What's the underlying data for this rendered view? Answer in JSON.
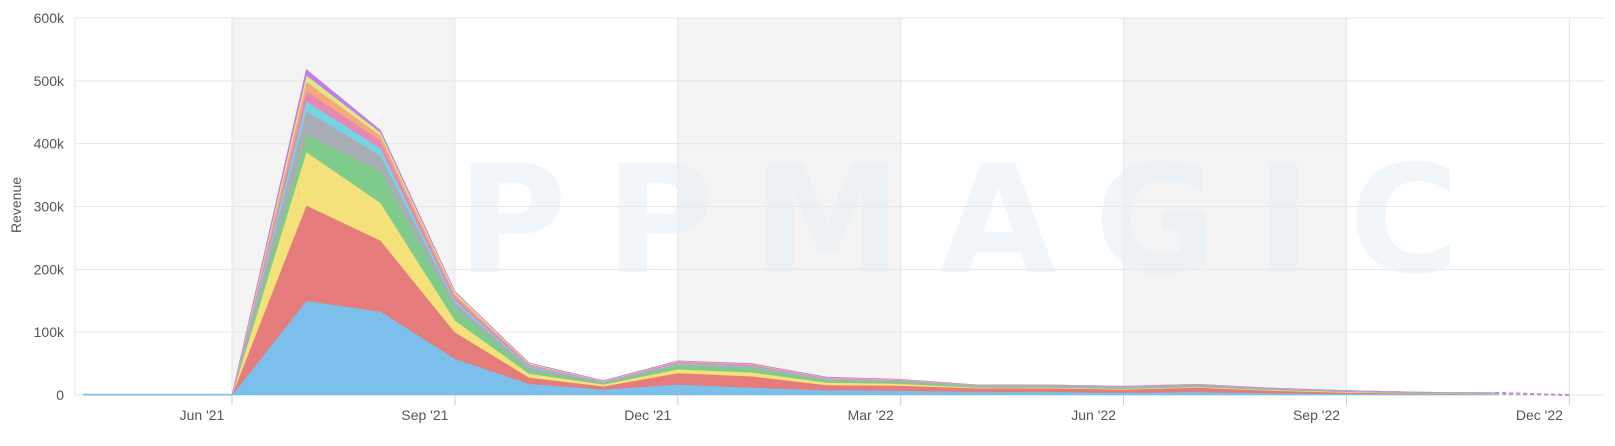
{
  "watermark": "APPMAGIC",
  "chart_data": {
    "type": "area",
    "stacked": true,
    "ylabel": "Revenue",
    "ylim": [
      0,
      600000
    ],
    "y_ticks": [
      0,
      100000,
      200000,
      300000,
      400000,
      500000,
      600000
    ],
    "y_tick_labels": [
      "0",
      "100k",
      "200k",
      "300k",
      "400k",
      "500k",
      "600k"
    ],
    "x_tick_labels": [
      "Jun '21",
      "Sep '21",
      "Dec '21",
      "Mar '22",
      "Jun '22",
      "Sep '22",
      "Dec '22"
    ],
    "x": [
      "2021-04",
      "2021-05",
      "2021-06",
      "2021-07",
      "2021-08",
      "2021-09",
      "2021-10",
      "2021-11",
      "2021-12",
      "2022-01",
      "2022-02",
      "2022-03",
      "2022-04",
      "2022-05",
      "2022-06",
      "2022-07",
      "2022-08",
      "2022-09",
      "2022-10",
      "2022-11",
      "2022-12"
    ],
    "projected_from": "2022-11",
    "grid": true,
    "shaded_bands": [
      [
        "2021-06",
        "2021-09"
      ],
      [
        "2021-12",
        "2022-03"
      ],
      [
        "2022-06",
        "2022-09"
      ]
    ],
    "series": [
      {
        "color": "#7bbfea",
        "values": [
          0,
          0,
          0,
          150000,
          133000,
          58000,
          18000,
          9000,
          17000,
          12000,
          8000,
          7000,
          5000,
          5000,
          4000,
          5000,
          3000,
          2000,
          1500,
          1000,
          0
        ]
      },
      {
        "color": "#e57b7b",
        "values": [
          0,
          0,
          0,
          152000,
          113000,
          42000,
          10000,
          5000,
          18000,
          18000,
          8000,
          8000,
          6000,
          6000,
          5000,
          7000,
          4000,
          2000,
          1000,
          500,
          0
        ]
      },
      {
        "color": "#f4e17a",
        "values": [
          0,
          0,
          0,
          85000,
          60000,
          19000,
          6000,
          3000,
          6000,
          6000,
          4000,
          3000,
          1000,
          1000,
          1000,
          1000,
          1000,
          1000,
          500,
          500,
          0
        ]
      },
      {
        "color": "#7ecb8b",
        "values": [
          0,
          0,
          0,
          28000,
          50000,
          20000,
          5000,
          2000,
          6000,
          7000,
          3000,
          3000,
          2000,
          1500,
          1500,
          1500,
          1000,
          500,
          500,
          500,
          0
        ]
      },
      {
        "color": "#a8adb3",
        "values": [
          0,
          0,
          0,
          37000,
          25000,
          8000,
          5000,
          1500,
          2000,
          2000,
          1500,
          1500,
          1000,
          1000,
          1000,
          1000,
          500,
          500,
          500,
          500,
          0
        ]
      },
      {
        "color": "#76d3e3",
        "values": [
          0,
          0,
          0,
          16000,
          12000,
          4000,
          2000,
          500,
          1500,
          1000,
          1000,
          500,
          500,
          500,
          500,
          500,
          500,
          500,
          500,
          500,
          0
        ]
      },
      {
        "color": "#e788b4",
        "values": [
          0,
          0,
          0,
          16000,
          12000,
          6000,
          2000,
          500,
          2000,
          2000,
          1500,
          1000,
          500,
          500,
          500,
          500,
          500,
          500,
          0,
          0,
          0
        ]
      },
      {
        "color": "#f5a878",
        "values": [
          0,
          0,
          0,
          15000,
          8000,
          4000,
          1500,
          500,
          1000,
          1000,
          500,
          500,
          500,
          500,
          500,
          500,
          500,
          0,
          0,
          0,
          0
        ]
      },
      {
        "color": "#dce88a",
        "values": [
          0,
          0,
          0,
          10000,
          5000,
          3000,
          1000,
          500,
          500,
          500,
          500,
          500,
          0,
          0,
          0,
          0,
          0,
          0,
          0,
          0,
          0
        ]
      },
      {
        "color": "#c07ee6",
        "values": [
          0,
          0,
          0,
          9000,
          3000,
          1000,
          500,
          500,
          500,
          500,
          500,
          0,
          0,
          0,
          0,
          0,
          0,
          0,
          0,
          0,
          0
        ]
      }
    ]
  }
}
